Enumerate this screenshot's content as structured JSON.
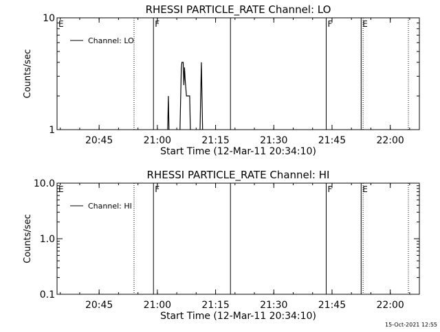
{
  "timestamp": "15-Oct-2021 12:55",
  "chart_data": [
    {
      "type": "line",
      "title": "RHESSI PARTICLE_RATE Channel: LO",
      "xlabel": "Start Time (12-Mar-11 20:34:10)",
      "ylabel": "Counts/sec",
      "x_unit": "time HH:MM",
      "xlim": [
        "20:34:10",
        "22:07:30"
      ],
      "ylim": [
        1,
        10
      ],
      "yscale": "log",
      "x_ticks": [
        "20:45",
        "21:00",
        "21:15",
        "21:30",
        "21:45",
        "22:00"
      ],
      "y_ticks": [
        "1",
        "10"
      ],
      "legend": "top-left",
      "grid": false,
      "series": [
        {
          "name": "Channel: LO",
          "points": [
            [
              "21:02:40",
              1
            ],
            [
              "21:02:50",
              2.0
            ],
            [
              "21:03:00",
              1
            ],
            [
              "21:05:50",
              1
            ],
            [
              "21:06:10",
              3.5
            ],
            [
              "21:06:20",
              4.0
            ],
            [
              "21:06:40",
              4.0
            ],
            [
              "21:06:50",
              2.5
            ],
            [
              "21:07:00",
              3.6
            ],
            [
              "21:07:10",
              2.8
            ],
            [
              "21:07:30",
              2.0
            ],
            [
              "21:08:20",
              2.0
            ],
            [
              "21:08:30",
              1
            ],
            [
              "21:11:00",
              1
            ],
            [
              "21:11:10",
              2.0
            ],
            [
              "21:11:20",
              4.0
            ],
            [
              "21:11:30",
              2.0
            ],
            [
              "21:11:40",
              1
            ]
          ]
        }
      ],
      "markers": [
        {
          "label": "E",
          "time": "20:34:10",
          "style": "solid"
        },
        {
          "label": "",
          "time": "20:54:00",
          "style": "dotted"
        },
        {
          "label": "F",
          "time": "20:59:00",
          "style": "solid"
        },
        {
          "label": "",
          "time": "21:18:50",
          "style": "solid"
        },
        {
          "label": "F",
          "time": "21:43:30",
          "style": "solid"
        },
        {
          "label": "E",
          "time": "21:52:30",
          "style": "solid"
        },
        {
          "label": "",
          "time": "21:53:00",
          "style": "dotted"
        },
        {
          "label": "",
          "time": "22:10:40",
          "style": "dotted"
        }
      ]
    },
    {
      "type": "line",
      "title": "RHESSI PARTICLE_RATE Channel: HI",
      "xlabel": "Start Time (12-Mar-11 20:34:10)",
      "ylabel": "Counts/sec",
      "x_unit": "time HH:MM",
      "xlim": [
        "20:34:10",
        "22:07:30"
      ],
      "ylim": [
        0.1,
        10
      ],
      "yscale": "log",
      "x_ticks": [
        "20:45",
        "21:00",
        "21:15",
        "21:30",
        "21:45",
        "22:00"
      ],
      "y_ticks": [
        "0.1",
        "1.0",
        "10.0"
      ],
      "legend": "top-left",
      "grid": false,
      "series": [
        {
          "name": "Channel: HI",
          "points": []
        }
      ],
      "markers": [
        {
          "label": "E",
          "time": "20:34:10",
          "style": "solid"
        },
        {
          "label": "",
          "time": "20:54:00",
          "style": "dotted"
        },
        {
          "label": "F",
          "time": "20:59:00",
          "style": "solid"
        },
        {
          "label": "",
          "time": "21:18:50",
          "style": "solid"
        },
        {
          "label": "F",
          "time": "21:43:30",
          "style": "solid"
        },
        {
          "label": "E",
          "time": "21:52:30",
          "style": "solid"
        },
        {
          "label": "",
          "time": "21:53:00",
          "style": "dotted"
        },
        {
          "label": "",
          "time": "22:10:40",
          "style": "dotted"
        }
      ]
    }
  ]
}
